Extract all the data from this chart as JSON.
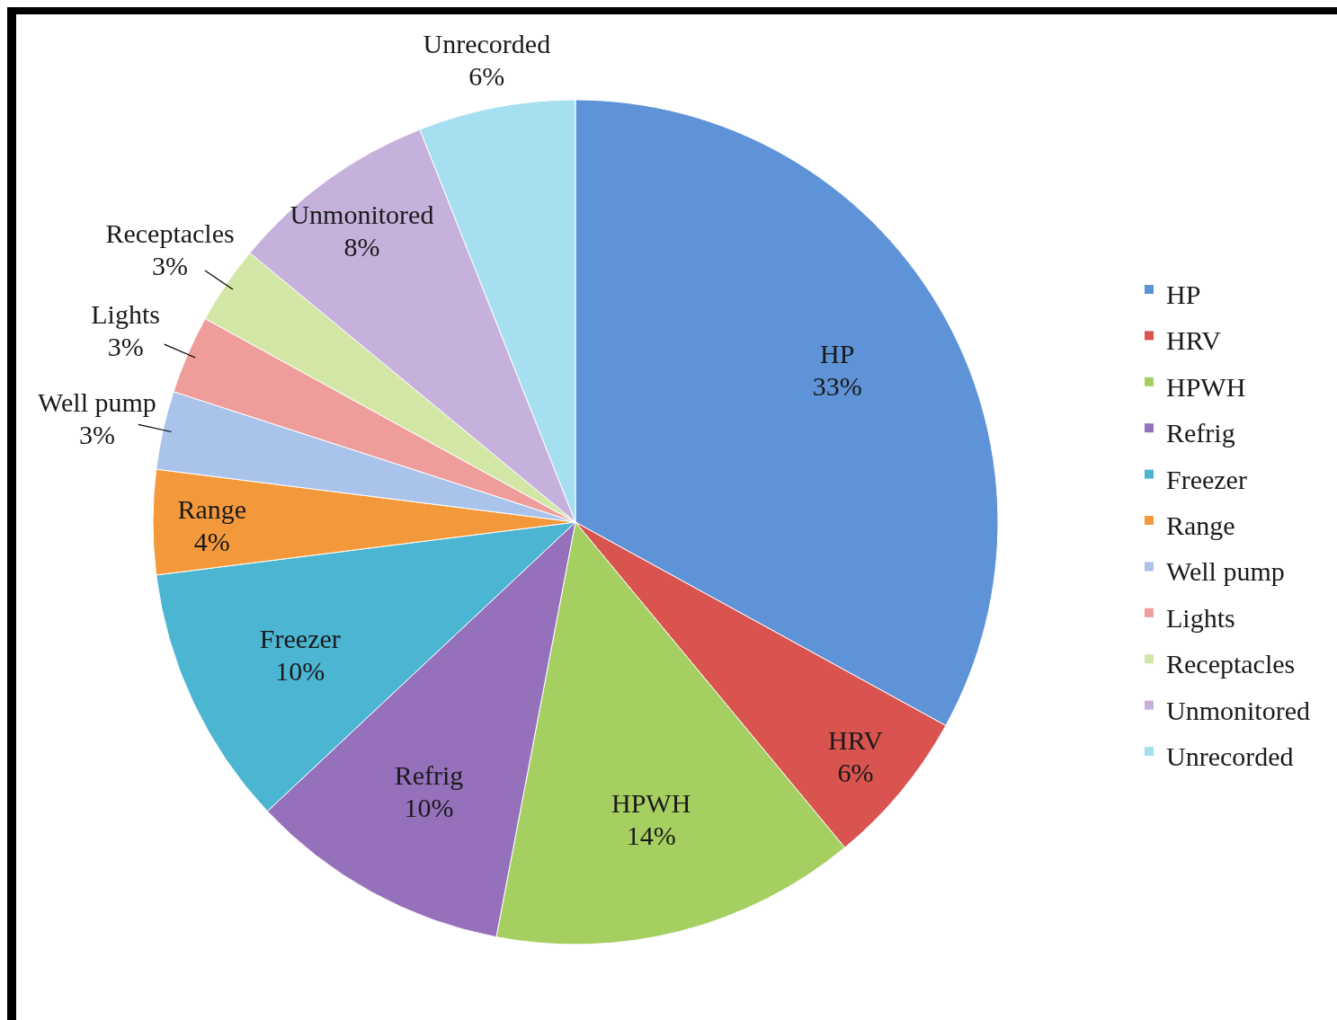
{
  "chart_data": {
    "type": "pie",
    "categories": [
      "HP",
      "HRV",
      "HPWH",
      "Refrig",
      "Freezer",
      "Range",
      "Well pump",
      "Lights",
      "Receptacles",
      "Unmonitored",
      "Unrecorded"
    ],
    "values": [
      33,
      6,
      14,
      10,
      10,
      4,
      3,
      3,
      3,
      8,
      6
    ],
    "value_labels": [
      "33%",
      "6%",
      "14%",
      "10%",
      "10%",
      "4%",
      "3%",
      "3%",
      "3%",
      "8%",
      "6%"
    ],
    "colors": [
      "#5e93d8",
      "#d9534f",
      "#a6cf62",
      "#9571bb",
      "#4bb5d2",
      "#f3993b",
      "#a9c3ea",
      "#ef9d9b",
      "#d2e6a6",
      "#c6b1dd",
      "#a6e0f0"
    ],
    "legend": "right"
  }
}
